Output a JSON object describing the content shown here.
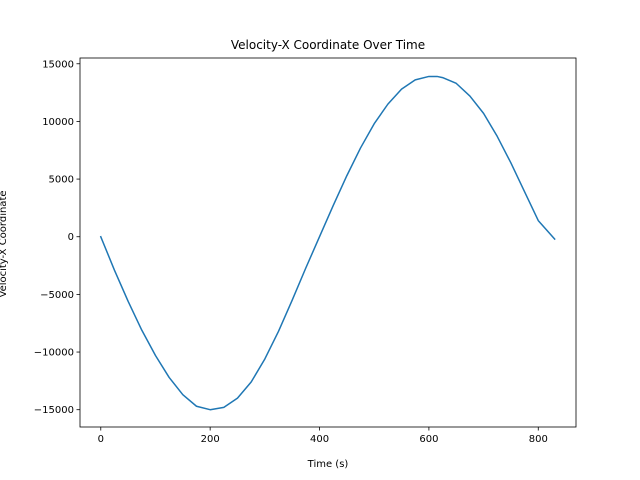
{
  "chart_data": {
    "type": "line",
    "title": "Velocity-X Coordinate Over Time",
    "xlabel": "Time (s)",
    "ylabel": "Velocity-X Coordinate",
    "xlim": [
      -38,
      869
    ],
    "ylim": [
      -16500,
      15500
    ],
    "xticks": [
      0,
      200,
      400,
      600,
      800
    ],
    "yticks": [
      -15000,
      -10000,
      -5000,
      0,
      5000,
      10000,
      15000
    ],
    "grid": false,
    "series": [
      {
        "color": "#1f77b4",
        "x": [
          0,
          25,
          50,
          75,
          100,
          125,
          150,
          175,
          200,
          225,
          250,
          275,
          300,
          325,
          350,
          375,
          400,
          425,
          450,
          475,
          500,
          525,
          550,
          575,
          600,
          615,
          625,
          650,
          675,
          700,
          725,
          750,
          775,
          800,
          830
        ],
        "y": [
          0,
          -2900,
          -5600,
          -8100,
          -10300,
          -12200,
          -13700,
          -14700,
          -15000,
          -14800,
          -14000,
          -12600,
          -10600,
          -8200,
          -5500,
          -2700,
          0,
          2700,
          5300,
          7700,
          9800,
          11500,
          12800,
          13600,
          13900,
          13900,
          13800,
          13300,
          12200,
          10700,
          8700,
          6400,
          3900,
          1400,
          -200
        ]
      }
    ]
  }
}
